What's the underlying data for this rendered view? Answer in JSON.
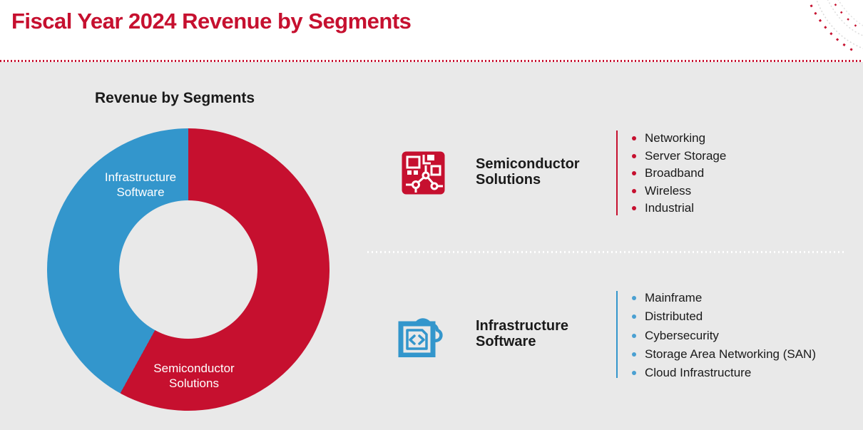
{
  "header": {
    "title": "Fiscal Year 2024 Revenue by Segments"
  },
  "colors": {
    "brand_red": "#C6102F",
    "brand_blue": "#3396CC",
    "background_gray": "#E9E9E9",
    "text_dark": "#1a1a1a"
  },
  "chart_data": {
    "type": "pie",
    "title": "Revenue by Segments",
    "donut": true,
    "start_angle_deg": 0,
    "legend_position": "on-slice",
    "slices": [
      {
        "label": "Semiconductor Solutions",
        "label_lines": [
          "Semiconductor",
          "Solutions"
        ],
        "percent": 58,
        "color": "#C6102F"
      },
      {
        "label": "Infrastructure Software",
        "label_lines": [
          "Infrastructure",
          "Software"
        ],
        "percent": 42,
        "color": "#3396CC"
      }
    ]
  },
  "sections": [
    {
      "icon": "circuit-chip-icon",
      "title": "Semiconductor Solutions",
      "accent": "#C6102F",
      "items": [
        "Networking",
        "Server Storage",
        "Broadband",
        "Wireless",
        "Industrial"
      ]
    },
    {
      "icon": "cloud-code-icon",
      "title": "Infrastructure Software",
      "accent": "#3396CC",
      "items": [
        "Mainframe",
        "Distributed",
        "Cybersecurity",
        "Storage Area Networking (SAN)",
        "Cloud Infrastructure"
      ]
    }
  ]
}
